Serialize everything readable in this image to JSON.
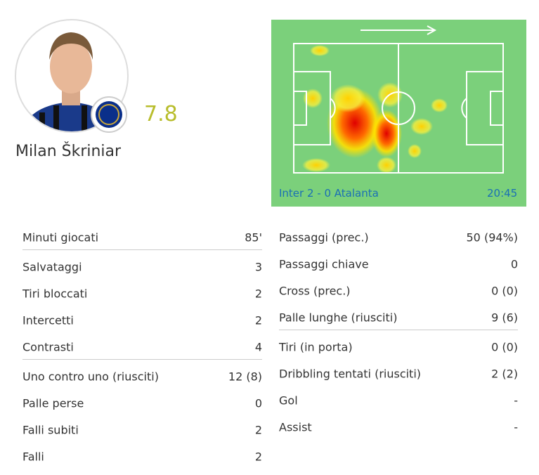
{
  "player": {
    "name": "Milan Škriniar",
    "rating": "7.8"
  },
  "match": {
    "score": "Inter 2 - 0 Atalanta",
    "time": "20:45"
  },
  "stats_left": [
    [
      {
        "label": "Minuti giocati",
        "value": "85'"
      }
    ],
    [
      {
        "label": "Salvataggi",
        "value": "3"
      },
      {
        "label": "Tiri bloccati",
        "value": "2"
      },
      {
        "label": "Intercetti",
        "value": "2"
      },
      {
        "label": "Contrasti",
        "value": "4"
      }
    ],
    [
      {
        "label": "Uno contro uno (riusciti)",
        "value": "12 (8)"
      },
      {
        "label": "Palle perse",
        "value": "0"
      },
      {
        "label": "Falli subiti",
        "value": "2"
      },
      {
        "label": "Falli",
        "value": "2"
      }
    ]
  ],
  "stats_right": [
    [
      {
        "label": "Passaggi (prec.)",
        "value": "50 (94%)"
      },
      {
        "label": "Passaggi chiave",
        "value": "0"
      },
      {
        "label": "Cross (prec.)",
        "value": "0 (0)"
      },
      {
        "label": "Palle lunghe (riusciti)",
        "value": "9 (6)"
      }
    ],
    [
      {
        "label": "Tiri (in porta)",
        "value": "0 (0)"
      },
      {
        "label": "Dribbling tentati (riusciti)",
        "value": "2 (2)"
      },
      {
        "label": "Gol",
        "value": "-"
      },
      {
        "label": "Assist",
        "value": "-"
      }
    ]
  ]
}
